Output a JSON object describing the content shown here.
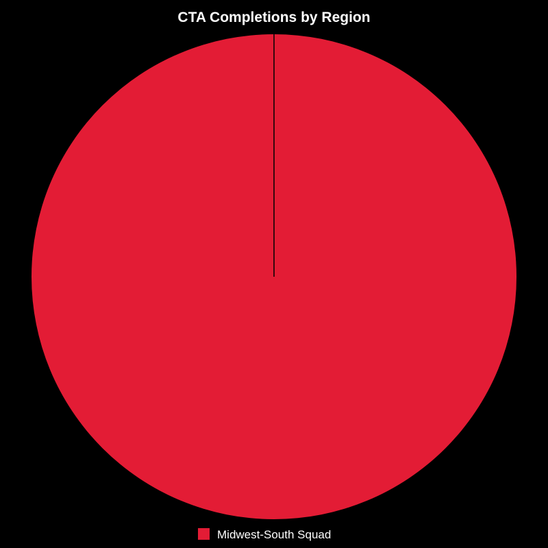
{
  "chart_data": {
    "type": "pie",
    "title": "CTA Completions by Region",
    "series": [
      {
        "name": "Midwest-South Squad",
        "value": 100,
        "color": "#e31c35"
      }
    ],
    "legend_position": "bottom",
    "background_color": "#000000",
    "slice_border_color": "#000000"
  }
}
